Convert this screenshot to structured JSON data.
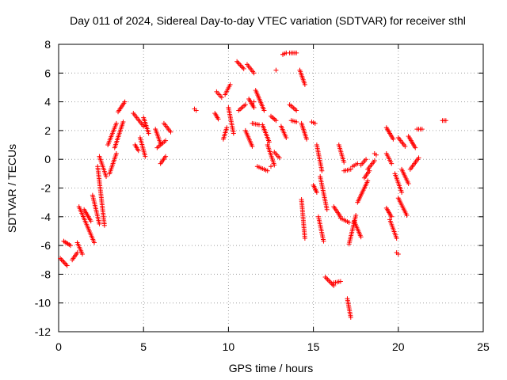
{
  "chart_data": {
    "type": "scatter",
    "title": "Day 011 of 2024, Sidereal Day-to-day VTEC variation (SDTVAR) for receiver sthl",
    "xlabel": "GPS time / hours",
    "ylabel": "SDTVAR / TECUs",
    "xlim": [
      0,
      25
    ],
    "ylim": [
      -12,
      8
    ],
    "xticks": [
      0,
      5,
      10,
      15,
      20,
      25
    ],
    "yticks": [
      8,
      6,
      4,
      2,
      0,
      -2,
      -4,
      -6,
      -8,
      -10,
      -12
    ],
    "grid": true,
    "marker": "plus",
    "color": "#ff0000",
    "segments": [
      {
        "x": [
          0.3,
          0.7
        ],
        "y": [
          -5.7,
          -6.0
        ]
      },
      {
        "x": [
          0.1,
          0.5
        ],
        "y": [
          -6.9,
          -7.4
        ]
      },
      {
        "x": [
          0.8,
          1.1
        ],
        "y": [
          -7.0,
          -6.5
        ]
      },
      {
        "x": [
          1.1,
          1.4
        ],
        "y": [
          -5.8,
          -6.6
        ]
      },
      {
        "x": [
          1.2,
          2.1
        ],
        "y": [
          -3.3,
          -5.8
        ]
      },
      {
        "x": [
          1.5,
          1.9
        ],
        "y": [
          -3.5,
          -4.3
        ]
      },
      {
        "x": [
          2.0,
          2.4
        ],
        "y": [
          -2.5,
          -4.5
        ]
      },
      {
        "x": [
          2.3,
          2.7
        ],
        "y": [
          -0.5,
          -4.6
        ]
      },
      {
        "x": [
          2.4,
          2.8
        ],
        "y": [
          0.2,
          -1.2
        ]
      },
      {
        "x": [
          2.9,
          3.4
        ],
        "y": [
          1.0,
          2.5
        ]
      },
      {
        "x": [
          3.0,
          3.4
        ],
        "y": [
          -1.0,
          0.4
        ]
      },
      {
        "x": [
          3.3,
          3.8
        ],
        "y": [
          0.8,
          2.6
        ]
      },
      {
        "x": [
          3.5,
          3.9
        ],
        "y": [
          3.3,
          4.0
        ]
      },
      {
        "x": [
          4.4,
          5.0
        ],
        "y": [
          3.2,
          2.3
        ]
      },
      {
        "x": [
          4.5,
          4.7
        ],
        "y": [
          1.0,
          0.6
        ]
      },
      {
        "x": [
          4.8,
          5.1
        ],
        "y": [
          1.5,
          0.2
        ]
      },
      {
        "x": [
          5.0,
          5.3
        ],
        "y": [
          2.9,
          1.8
        ]
      },
      {
        "x": [
          5.7,
          6.0
        ],
        "y": [
          2.1,
          1.1
        ]
      },
      {
        "x": [
          5.8,
          6.3
        ],
        "y": [
          0.8,
          1.3
        ]
      },
      {
        "x": [
          6.0,
          6.3
        ],
        "y": [
          -0.3,
          0.2
        ]
      },
      {
        "x": [
          6.2,
          6.6
        ],
        "y": [
          2.5,
          1.9
        ]
      },
      {
        "x": [
          8.0,
          8.1
        ],
        "y": [
          3.5,
          3.4
        ]
      },
      {
        "x": [
          9.2,
          9.4
        ],
        "y": [
          3.2,
          2.8
        ]
      },
      {
        "x": [
          9.3,
          9.6
        ],
        "y": [
          4.7,
          4.3
        ]
      },
      {
        "x": [
          9.7,
          9.9
        ],
        "y": [
          1.4,
          2.2
        ]
      },
      {
        "x": [
          9.8,
          10.1
        ],
        "y": [
          4.5,
          5.2
        ]
      },
      {
        "x": [
          10.0,
          10.3
        ],
        "y": [
          3.6,
          1.8
        ]
      },
      {
        "x": [
          10.5,
          10.9
        ],
        "y": [
          6.8,
          6.3
        ]
      },
      {
        "x": [
          10.6,
          11.0
        ],
        "y": [
          3.4,
          3.8
        ]
      },
      {
        "x": [
          11.0,
          11.4
        ],
        "y": [
          2.0,
          0.9
        ]
      },
      {
        "x": [
          11.1,
          11.5
        ],
        "y": [
          6.6,
          6.0
        ]
      },
      {
        "x": [
          11.2,
          11.5
        ],
        "y": [
          4.2,
          3.6
        ]
      },
      {
        "x": [
          11.4,
          11.8
        ],
        "y": [
          2.5,
          2.4
        ]
      },
      {
        "x": [
          11.6,
          12.1
        ],
        "y": [
          4.8,
          3.4
        ]
      },
      {
        "x": [
          11.7,
          12.3
        ],
        "y": [
          -0.5,
          -0.8
        ]
      },
      {
        "x": [
          12.0,
          12.4
        ],
        "y": [
          2.4,
          1.2
        ]
      },
      {
        "x": [
          12.3,
          12.7
        ],
        "y": [
          1.0,
          -0.4
        ]
      },
      {
        "x": [
          12.5,
          12.8
        ],
        "y": [
          3.0,
          2.7
        ]
      },
      {
        "x": [
          12.7,
          13.0
        ],
        "y": [
          0.5,
          0.1
        ]
      },
      {
        "x": [
          13.1,
          13.4
        ],
        "y": [
          2.3,
          1.5
        ]
      },
      {
        "x": [
          13.2,
          13.4
        ],
        "y": [
          7.3,
          7.4
        ]
      },
      {
        "x": [
          13.6,
          14.0
        ],
        "y": [
          7.4,
          7.4
        ]
      },
      {
        "x": [
          13.6,
          14.0
        ],
        "y": [
          3.8,
          3.4
        ]
      },
      {
        "x": [
          13.7,
          14.0
        ],
        "y": [
          2.7,
          2.6
        ]
      },
      {
        "x": [
          14.2,
          14.5
        ],
        "y": [
          6.2,
          5.2
        ]
      },
      {
        "x": [
          14.3,
          14.6
        ],
        "y": [
          2.5,
          1.4
        ]
      },
      {
        "x": [
          14.3,
          14.5
        ],
        "y": [
          -2.8,
          -5.5
        ]
      },
      {
        "x": [
          14.9,
          15.1
        ],
        "y": [
          2.6,
          2.5
        ]
      },
      {
        "x": [
          15.0,
          15.2
        ],
        "y": [
          -1.8,
          -2.3
        ]
      },
      {
        "x": [
          15.2,
          15.5
        ],
        "y": [
          1.0,
          -0.8
        ]
      },
      {
        "x": [
          15.4,
          15.8
        ],
        "y": [
          -1.2,
          -3.5
        ]
      },
      {
        "x": [
          15.3,
          15.6
        ],
        "y": [
          -4.0,
          -5.7
        ]
      },
      {
        "x": [
          15.7,
          16.2
        ],
        "y": [
          -8.2,
          -8.8
        ]
      },
      {
        "x": [
          16.2,
          16.6
        ],
        "y": [
          -8.6,
          -8.5
        ]
      },
      {
        "x": [
          16.2,
          16.6
        ],
        "y": [
          -3.3,
          -4.0
        ]
      },
      {
        "x": [
          16.5,
          16.8
        ],
        "y": [
          1.0,
          -0.2
        ]
      },
      {
        "x": [
          16.6,
          17.1
        ],
        "y": [
          -4.1,
          -4.4
        ]
      },
      {
        "x": [
          16.8,
          17.2
        ],
        "y": [
          -0.8,
          -0.7
        ]
      },
      {
        "x": [
          17.0,
          17.2
        ],
        "y": [
          -9.7,
          -11.0
        ]
      },
      {
        "x": [
          17.1,
          17.5
        ],
        "y": [
          -5.9,
          -3.9
        ]
      },
      {
        "x": [
          17.3,
          17.6
        ],
        "y": [
          -0.5,
          -0.3
        ]
      },
      {
        "x": [
          17.4,
          17.8
        ],
        "y": [
          -4.3,
          -5.4
        ]
      },
      {
        "x": [
          17.6,
          18.2
        ],
        "y": [
          -3.0,
          -1.5
        ]
      },
      {
        "x": [
          17.8,
          18.1
        ],
        "y": [
          -0.4,
          0.0
        ]
      },
      {
        "x": [
          18.0,
          18.3
        ],
        "y": [
          -1.3,
          -0.8
        ]
      },
      {
        "x": [
          18.2,
          18.6
        ],
        "y": [
          -0.7,
          -0.1
        ]
      },
      {
        "x": [
          18.6,
          18.7
        ],
        "y": [
          0.4,
          0.3
        ]
      },
      {
        "x": [
          19.3,
          19.7
        ],
        "y": [
          2.2,
          1.4
        ]
      },
      {
        "x": [
          19.3,
          19.6
        ],
        "y": [
          0.4,
          -0.3
        ]
      },
      {
        "x": [
          19.3,
          19.6
        ],
        "y": [
          -3.4,
          -4.0
        ]
      },
      {
        "x": [
          19.5,
          19.9
        ],
        "y": [
          -4.2,
          -5.5
        ]
      },
      {
        "x": [
          19.9,
          20.0
        ],
        "y": [
          -6.5,
          -6.6
        ]
      },
      {
        "x": [
          19.8,
          20.2
        ],
        "y": [
          -1.0,
          -2.3
        ]
      },
      {
        "x": [
          20.0,
          20.4
        ],
        "y": [
          1.5,
          0.9
        ]
      },
      {
        "x": [
          20.0,
          20.5
        ],
        "y": [
          -2.7,
          -3.9
        ]
      },
      {
        "x": [
          20.2,
          20.6
        ],
        "y": [
          -0.7,
          -1.7
        ]
      },
      {
        "x": [
          20.6,
          21.0
        ],
        "y": [
          1.6,
          0.8
        ]
      },
      {
        "x": [
          20.7,
          21.2
        ],
        "y": [
          -0.7,
          0.1
        ]
      },
      {
        "x": [
          21.1,
          21.4
        ],
        "y": [
          2.1,
          2.1
        ]
      },
      {
        "x": [
          22.6,
          22.8
        ],
        "y": [
          2.7,
          2.7
        ]
      }
    ],
    "isolated_points": [
      {
        "x": 12.8,
        "y": 6.2
      },
      {
        "x": 13.2,
        "y": 7.3
      },
      {
        "x": 12.5,
        "y": -0.5
      },
      {
        "x": 11.5,
        "y": 4.0
      }
    ]
  }
}
